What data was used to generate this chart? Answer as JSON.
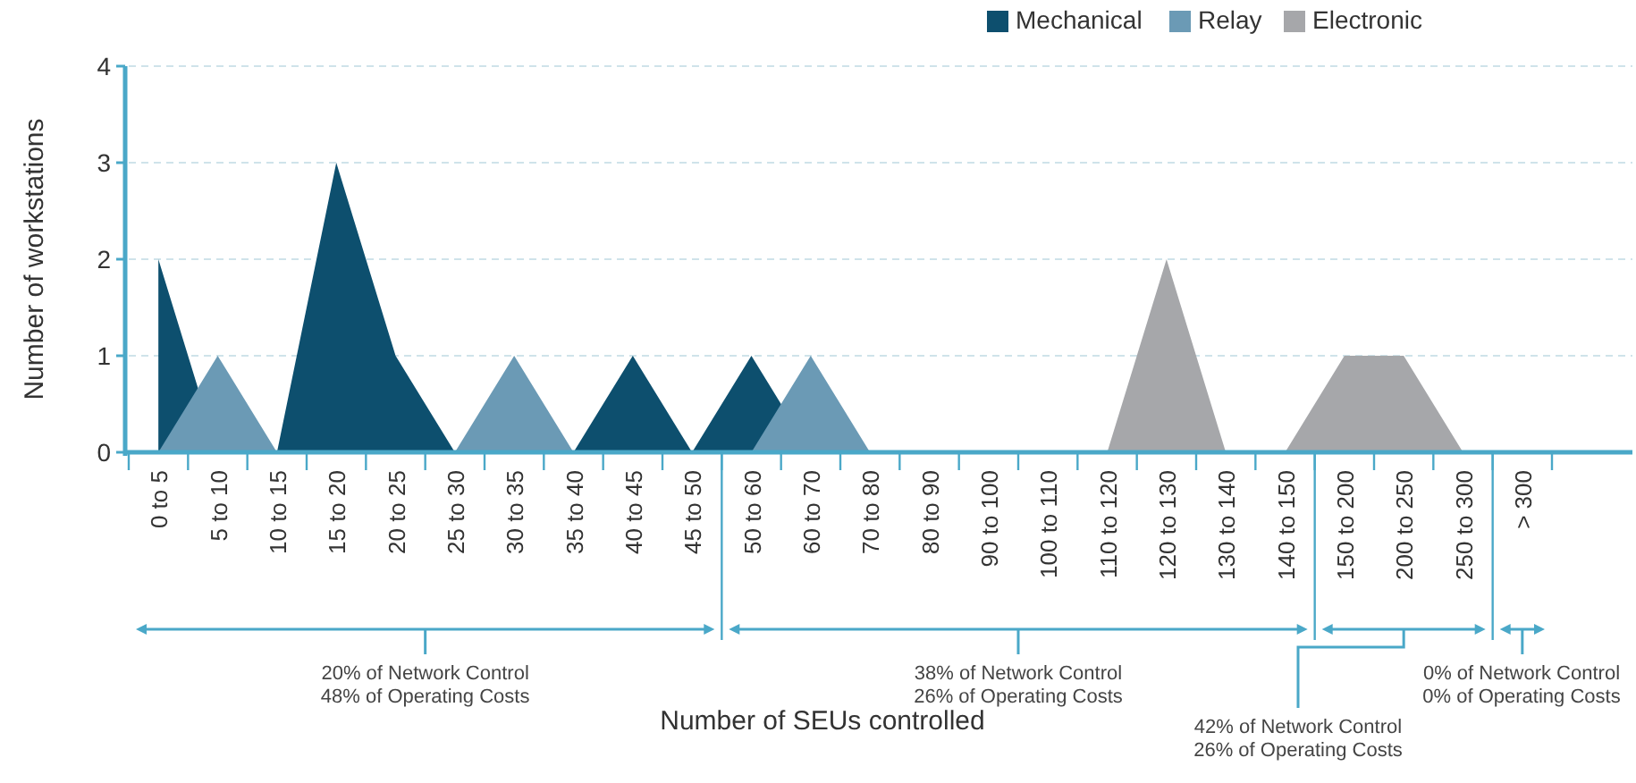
{
  "chart_data": {
    "type": "area",
    "xlabel": "Number of SEUs controlled",
    "ylabel": "Number of workstations",
    "categories": [
      "0 to 5",
      "5 to 10",
      "10 to 15",
      "15 to 20",
      "20 to 25",
      "25 to 30",
      "30 to 35",
      "35 to 40",
      "40 to 45",
      "45 to 50",
      "50 to 60",
      "60 to 70",
      "70 to 80",
      "80 to 90",
      "90 to 100",
      "100 to 110",
      "110 to 120",
      "120 to 130",
      "130 to 140",
      "140 to 150",
      "150 to 200",
      "200 to 250",
      "250 to 300",
      "> 300"
    ],
    "series": [
      {
        "name": "Mechanical",
        "color": "#0d4f6e",
        "values": [
          2,
          0,
          0,
          3,
          1,
          0,
          0,
          0,
          1,
          0,
          1,
          0,
          0,
          0,
          0,
          0,
          0,
          0,
          0,
          0,
          0,
          0,
          0,
          0
        ]
      },
      {
        "name": "Relay",
        "color": "#6b9ab5",
        "values": [
          0,
          1,
          0,
          0,
          0,
          0,
          1,
          0,
          0,
          0,
          0,
          1,
          0,
          0,
          0,
          0,
          0,
          0,
          0,
          0,
          0,
          0,
          0,
          0
        ]
      },
      {
        "name": "Electronic",
        "color": "#a6a7aa",
        "values": [
          0,
          0,
          0,
          0,
          0,
          0,
          0,
          0,
          0,
          0,
          0,
          0,
          0,
          0,
          0,
          0,
          0,
          2,
          0,
          0,
          1,
          1,
          0,
          0
        ]
      }
    ],
    "ylim": [
      0,
      4
    ],
    "yticks": [
      0,
      1,
      2,
      3,
      4
    ],
    "grid": "y",
    "legend": "top right",
    "annotations": [
      "20% of Network Control\n48% of Operating Costs",
      "38% of Network Control\n26% of Operating Costs",
      "42% of Network Control\n26% of Operating Costs",
      "0% of Network Control\n0% of Operating Costs"
    ]
  }
}
